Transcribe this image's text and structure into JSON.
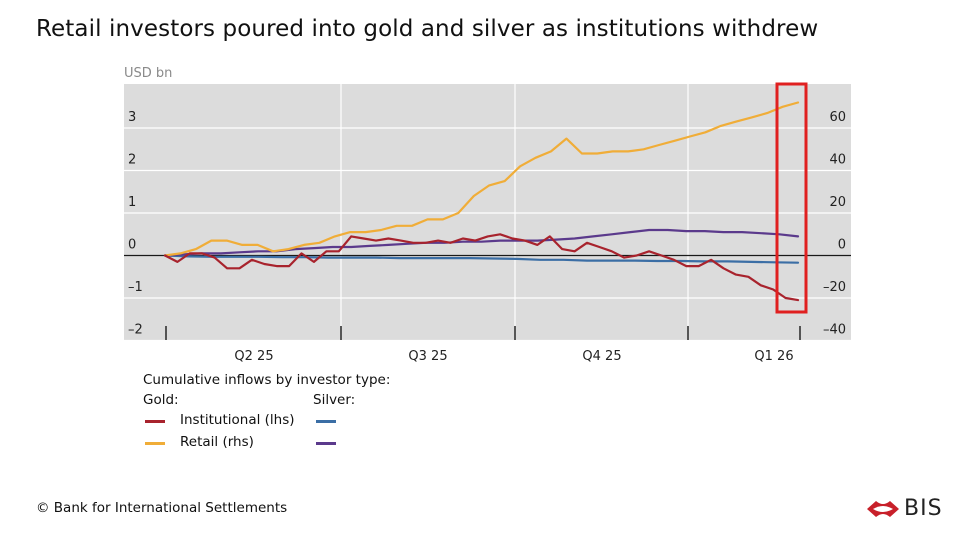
{
  "title": "Retail investors poured into gold and silver as institutions withdrew",
  "footer": "© Bank for International Settlements",
  "logo_text": "BIS",
  "colors": {
    "plot_bg": "#dcdcdc",
    "gold_institutional": "#a8232d",
    "gold_retail": "#f0ad38",
    "silver_institutional": "#3b6ea5",
    "silver_retail": "#5b3a8c",
    "highlight": "#e02020",
    "logo": "#c8202a"
  },
  "legend": {
    "heading": "Cumulative inflows by investor type:",
    "gold_label": "Gold:",
    "silver_label": "Silver:",
    "institutional_label": "Institutional (lhs)",
    "retail_label": "Retail (rhs)"
  },
  "chart_data": {
    "type": "line",
    "unit": "USD bn",
    "x_ticks": [
      "Q2 25",
      "Q3 25",
      "Q4 25",
      "Q1 26"
    ],
    "left_ticks": [
      "3",
      "2",
      "1",
      "0",
      "–1",
      "–2"
    ],
    "right_ticks": [
      "60",
      "40",
      "20",
      "0",
      "–20",
      "–40"
    ],
    "ylim_left": [
      -2,
      3
    ],
    "ylim_right": [
      -40,
      60
    ],
    "grid": true,
    "highlight_box": true,
    "x_period": "2025-03 to 2026-01 (weekly)",
    "series": [
      {
        "name": "Gold Institutional (lhs)",
        "axis": "left",
        "values": [
          0,
          -0.15,
          0.05,
          0.05,
          -0.05,
          -0.3,
          -0.3,
          -0.1,
          -0.2,
          -0.25,
          -0.25,
          0.05,
          -0.15,
          0.1,
          0.1,
          0.45,
          0.4,
          0.35,
          0.4,
          0.35,
          0.3,
          0.3,
          0.35,
          0.3,
          0.4,
          0.35,
          0.45,
          0.5,
          0.4,
          0.35,
          0.25,
          0.45,
          0.15,
          0.1,
          0.3,
          0.2,
          0.1,
          -0.05,
          0.0,
          0.1,
          0.0,
          -0.1,
          -0.25,
          -0.25,
          -0.1,
          -0.3,
          -0.45,
          -0.5,
          -0.7,
          -0.8,
          -1.0,
          -1.05
        ]
      },
      {
        "name": "Gold Retail (rhs)",
        "axis": "right",
        "values": [
          0,
          1,
          3,
          7,
          7,
          5,
          5,
          2,
          3,
          5,
          6,
          9,
          11,
          11,
          12,
          14,
          14,
          17,
          17,
          20,
          28,
          33,
          35,
          42,
          46,
          49,
          55,
          48,
          48,
          49,
          49,
          50,
          52,
          54,
          56,
          58,
          61,
          63,
          65,
          67,
          70,
          72
        ]
      },
      {
        "name": "Silver Institutional (lhs)",
        "axis": "left",
        "values": [
          0,
          -0.02,
          -0.03,
          -0.03,
          -0.03,
          -0.04,
          -0.04,
          -0.05,
          -0.05,
          -0.05,
          -0.06,
          -0.06,
          -0.06,
          -0.06,
          -0.07,
          -0.08,
          -0.1,
          -0.1,
          -0.12,
          -0.12,
          -0.12,
          -0.13,
          -0.13,
          -0.14,
          -0.14,
          -0.15,
          -0.16,
          -0.17
        ]
      },
      {
        "name": "Silver Retail (rhs)",
        "axis": "right",
        "values": [
          0,
          0.5,
          1,
          1,
          1.5,
          2,
          2,
          3,
          3.5,
          4,
          4,
          4.5,
          5,
          5.5,
          6,
          6,
          6.5,
          6.5,
          7,
          7,
          7,
          7.5,
          8,
          9,
          10,
          11,
          12,
          12,
          11.5,
          11.5,
          11,
          11,
          10.5,
          10,
          9
        ]
      }
    ]
  }
}
